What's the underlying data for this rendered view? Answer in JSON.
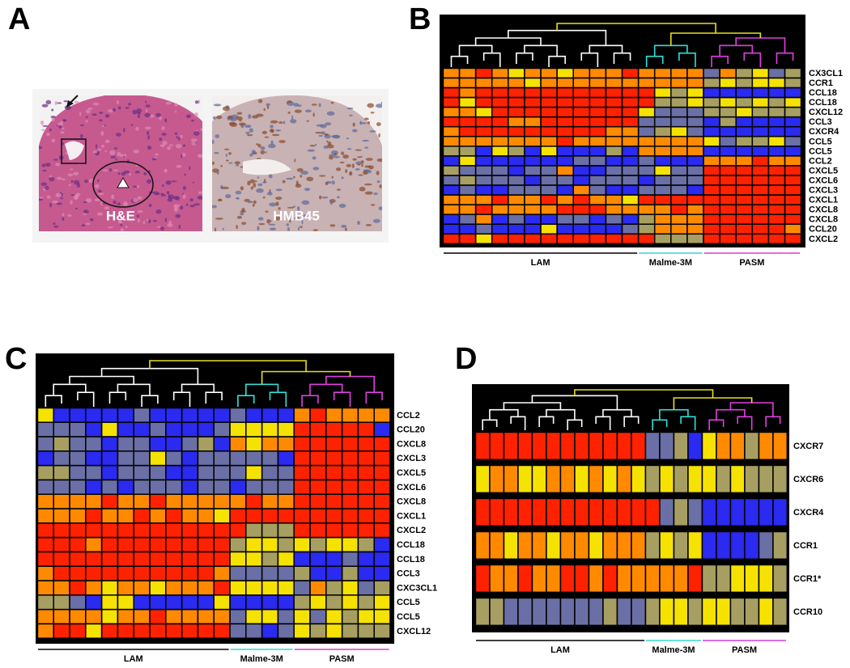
{
  "colors": [
    "#2a2af0",
    "#6a6fa6",
    "#a79f62",
    "#f6e200",
    "#ff8a00",
    "#ff2200"
  ],
  "panels": [
    {
      "label": "A",
      "images": [
        "H&E",
        "HMB45"
      ]
    },
    {
      "label": "B",
      "rows": [
        "CX3CL1",
        "CCR1",
        "CCL18",
        "CCL18",
        "CXCL12",
        "CCL3",
        "CXCR4",
        "CCL5",
        "CCL5",
        "CCL2",
        "CXCL5",
        "CXCL6",
        "CXCL3",
        "CXCL1",
        "CXCL8",
        "CXCL8",
        "CCL20",
        "CXCL2"
      ],
      "groups": [
        {
          "name": "LAM",
          "n": 12,
          "color": "#000000"
        },
        {
          "name": "Malme-3M",
          "n": 4,
          "color": "#33d6d0"
        },
        {
          "name": "PASM",
          "n": 6,
          "color": "#d53cd5"
        }
      ],
      "values": [
        [
          4,
          4,
          5,
          4,
          3,
          4,
          4,
          3,
          4,
          4,
          4,
          5,
          4,
          4,
          4,
          4,
          1,
          4,
          2,
          3,
          1,
          2
        ],
        [
          4,
          4,
          4,
          4,
          4,
          3,
          4,
          4,
          4,
          4,
          4,
          4,
          4,
          4,
          4,
          4,
          2,
          3,
          2,
          3,
          3,
          2
        ],
        [
          5,
          4,
          5,
          5,
          5,
          5,
          5,
          5,
          5,
          5,
          5,
          5,
          5,
          3,
          2,
          3,
          0,
          0,
          0,
          0,
          0,
          0
        ],
        [
          5,
          3,
          5,
          5,
          5,
          5,
          5,
          5,
          5,
          5,
          5,
          5,
          5,
          2,
          2,
          3,
          2,
          3,
          2,
          3,
          2,
          3
        ],
        [
          4,
          4,
          3,
          5,
          5,
          5,
          5,
          5,
          5,
          5,
          5,
          5,
          3,
          1,
          1,
          1,
          2,
          2,
          3,
          2,
          2,
          2
        ],
        [
          5,
          5,
          5,
          5,
          4,
          4,
          5,
          5,
          5,
          5,
          5,
          5,
          1,
          1,
          1,
          1,
          0,
          2,
          0,
          0,
          0,
          0
        ],
        [
          4,
          5,
          5,
          5,
          5,
          5,
          5,
          5,
          5,
          5,
          4,
          4,
          1,
          2,
          3,
          1,
          0,
          0,
          0,
          0,
          0,
          0
        ],
        [
          4,
          4,
          4,
          4,
          4,
          4,
          4,
          5,
          4,
          4,
          4,
          4,
          4,
          4,
          4,
          4,
          3,
          1,
          2,
          2,
          3,
          1
        ],
        [
          2,
          2,
          0,
          3,
          2,
          0,
          3,
          0,
          0,
          0,
          2,
          0,
          4,
          4,
          4,
          4,
          0,
          0,
          0,
          0,
          0,
          0
        ],
        [
          0,
          3,
          0,
          0,
          0,
          0,
          0,
          0,
          1,
          1,
          0,
          0,
          1,
          0,
          0,
          0,
          4,
          4,
          4,
          5,
          4,
          4
        ],
        [
          2,
          1,
          1,
          1,
          0,
          1,
          1,
          4,
          0,
          0,
          1,
          1,
          1,
          3,
          1,
          1,
          5,
          5,
          5,
          5,
          5,
          5
        ],
        [
          1,
          2,
          1,
          1,
          1,
          0,
          1,
          1,
          0,
          1,
          1,
          1,
          0,
          1,
          1,
          1,
          5,
          5,
          5,
          5,
          5,
          5
        ],
        [
          0,
          1,
          0,
          0,
          1,
          1,
          1,
          0,
          4,
          1,
          0,
          0,
          1,
          1,
          1,
          0,
          5,
          5,
          5,
          5,
          5,
          5
        ],
        [
          4,
          4,
          4,
          5,
          4,
          4,
          5,
          4,
          5,
          4,
          4,
          3,
          5,
          5,
          5,
          5,
          5,
          5,
          5,
          5,
          5,
          5
        ],
        [
          4,
          4,
          5,
          4,
          4,
          4,
          4,
          5,
          5,
          5,
          4,
          4,
          4,
          4,
          5,
          4,
          5,
          5,
          5,
          5,
          5,
          5
        ],
        [
          0,
          1,
          4,
          0,
          1,
          0,
          0,
          1,
          1,
          0,
          1,
          0,
          2,
          4,
          4,
          4,
          5,
          5,
          5,
          5,
          5,
          5
        ],
        [
          0,
          0,
          1,
          0,
          0,
          0,
          3,
          0,
          0,
          0,
          0,
          1,
          2,
          4,
          4,
          4,
          5,
          5,
          5,
          5,
          5,
          4
        ],
        [
          5,
          5,
          3,
          5,
          5,
          5,
          5,
          5,
          5,
          5,
          5,
          5,
          5,
          2,
          2,
          2,
          5,
          5,
          5,
          5,
          5,
          5
        ]
      ]
    },
    {
      "label": "C",
      "rows": [
        "CCL2",
        "CCL20",
        "CXCL8",
        "CXCL3",
        "CXCL5",
        "CXCL6",
        "CXCL8",
        "CXCL1",
        "CXCL2",
        "CCL18",
        "CCL18",
        "CCL3",
        "CXC3CL1",
        "CCL5",
        "CCL5",
        "CXCL12"
      ],
      "groups": [
        {
          "name": "LAM",
          "n": 12,
          "color": "#000000"
        },
        {
          "name": "Malme-3M",
          "n": 4,
          "color": "#33d6d0"
        },
        {
          "name": "PASM",
          "n": 6,
          "color": "#d53cd5"
        }
      ],
      "values": [
        [
          3,
          0,
          0,
          0,
          0,
          0,
          1,
          0,
          0,
          0,
          0,
          0,
          1,
          0,
          0,
          0,
          4,
          5,
          4,
          4,
          4,
          4
        ],
        [
          1,
          1,
          1,
          0,
          3,
          0,
          0,
          1,
          0,
          0,
          0,
          1,
          3,
          3,
          3,
          3,
          5,
          5,
          5,
          5,
          5,
          0
        ],
        [
          1,
          2,
          1,
          1,
          0,
          1,
          1,
          0,
          0,
          1,
          2,
          0,
          4,
          3,
          4,
          4,
          5,
          5,
          5,
          5,
          5,
          5
        ],
        [
          0,
          1,
          1,
          0,
          0,
          1,
          1,
          3,
          1,
          0,
          1,
          1,
          1,
          1,
          1,
          0,
          5,
          5,
          5,
          5,
          5,
          5
        ],
        [
          2,
          2,
          1,
          1,
          0,
          1,
          1,
          1,
          0,
          0,
          1,
          1,
          1,
          3,
          1,
          1,
          5,
          5,
          5,
          5,
          5,
          5
        ],
        [
          1,
          1,
          1,
          0,
          1,
          0,
          1,
          1,
          1,
          0,
          1,
          1,
          0,
          1,
          1,
          1,
          5,
          5,
          5,
          5,
          5,
          5
        ],
        [
          4,
          4,
          4,
          4,
          5,
          4,
          4,
          5,
          4,
          4,
          4,
          4,
          4,
          5,
          4,
          4,
          5,
          5,
          5,
          5,
          5,
          5
        ],
        [
          4,
          4,
          4,
          5,
          4,
          4,
          5,
          4,
          5,
          4,
          4,
          3,
          5,
          5,
          5,
          5,
          5,
          5,
          5,
          5,
          5,
          5
        ],
        [
          5,
          5,
          5,
          5,
          5,
          5,
          5,
          5,
          5,
          5,
          5,
          5,
          5,
          2,
          2,
          2,
          5,
          5,
          5,
          5,
          5,
          5
        ],
        [
          5,
          5,
          5,
          4,
          5,
          5,
          5,
          5,
          5,
          5,
          5,
          5,
          2,
          3,
          3,
          2,
          3,
          2,
          3,
          3,
          2,
          0
        ],
        [
          5,
          5,
          5,
          5,
          5,
          5,
          5,
          5,
          5,
          5,
          5,
          5,
          3,
          3,
          2,
          3,
          0,
          0,
          0,
          1,
          0,
          0
        ],
        [
          4,
          5,
          5,
          5,
          5,
          5,
          5,
          5,
          5,
          5,
          5,
          4,
          1,
          1,
          1,
          1,
          2,
          0,
          0,
          2,
          0,
          0
        ],
        [
          4,
          4,
          5,
          4,
          3,
          4,
          4,
          3,
          4,
          4,
          4,
          5,
          3,
          3,
          3,
          3,
          1,
          4,
          2,
          3,
          1,
          2
        ],
        [
          2,
          2,
          1,
          0,
          3,
          3,
          0,
          0,
          0,
          0,
          0,
          3,
          0,
          0,
          0,
          0,
          2,
          3,
          2,
          3,
          2,
          3
        ],
        [
          4,
          4,
          4,
          4,
          3,
          4,
          4,
          5,
          4,
          4,
          4,
          4,
          1,
          3,
          3,
          1,
          3,
          1,
          3,
          2,
          3,
          3
        ],
        [
          4,
          5,
          5,
          3,
          5,
          5,
          5,
          5,
          5,
          5,
          5,
          5,
          1,
          1,
          0,
          1,
          3,
          2,
          3,
          2,
          2,
          2
        ]
      ]
    },
    {
      "label": "D",
      "rows": [
        "CXCR7",
        "CXCR6",
        "CXCR4",
        "CCR1",
        "CCR1*",
        "CCR10"
      ],
      "groups": [
        {
          "name": "LAM",
          "n": 12,
          "color": "#000000"
        },
        {
          "name": "Malme-3M",
          "n": 4,
          "color": "#33d6d0"
        },
        {
          "name": "PASM",
          "n": 6,
          "color": "#d53cd5"
        }
      ],
      "values": [
        [
          5,
          5,
          5,
          5,
          5,
          5,
          5,
          5,
          5,
          5,
          5,
          5,
          1,
          1,
          2,
          0,
          3,
          4,
          4,
          2,
          4,
          4
        ],
        [
          3,
          4,
          4,
          3,
          3,
          4,
          4,
          3,
          4,
          3,
          4,
          3,
          2,
          3,
          2,
          3,
          3,
          2,
          3,
          2,
          2,
          2
        ],
        [
          5,
          5,
          5,
          5,
          5,
          5,
          5,
          5,
          5,
          5,
          5,
          5,
          5,
          1,
          2,
          1,
          0,
          0,
          0,
          0,
          0,
          0
        ],
        [
          4,
          4,
          3,
          4,
          4,
          3,
          4,
          4,
          3,
          4,
          4,
          4,
          2,
          3,
          2,
          3,
          0,
          0,
          0,
          0,
          1,
          2
        ],
        [
          5,
          4,
          4,
          5,
          4,
          4,
          5,
          5,
          4,
          5,
          4,
          4,
          4,
          4,
          4,
          5,
          2,
          2,
          3,
          3,
          3,
          2
        ],
        [
          2,
          2,
          1,
          1,
          1,
          1,
          1,
          1,
          1,
          2,
          1,
          1,
          2,
          3,
          3,
          2,
          3,
          3,
          2,
          2,
          3,
          2
        ]
      ]
    }
  ]
}
